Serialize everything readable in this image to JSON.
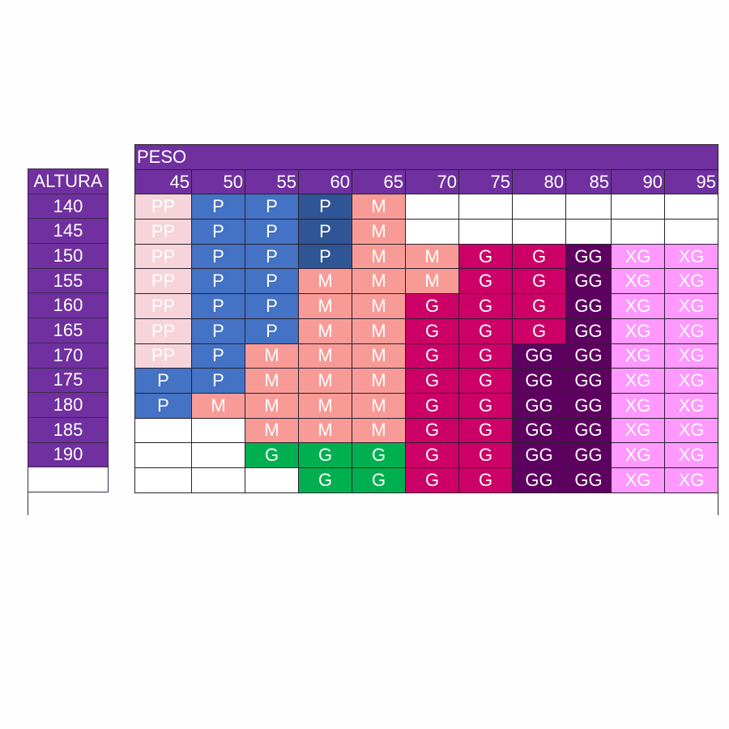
{
  "header": {
    "peso_label": "PESO",
    "altura_label": "ALTURA"
  },
  "weights": [
    "45",
    "50",
    "55",
    "60",
    "65",
    "70",
    "75",
    "80",
    "85",
    "90",
    "95"
  ],
  "heights": [
    "140",
    "145",
    "150",
    "155",
    "160",
    "165",
    "170",
    "175",
    "180",
    "185",
    "190",
    ""
  ],
  "colors": {
    "pp": "#f6d4d9",
    "p": "#4472c4",
    "pd": "#2f5597",
    "m": "#f89b97",
    "g": "#cc0066",
    "gn": "#00b050",
    "gg": "#5e0060",
    "xg": "#ff99ff",
    "": "#ffffff"
  },
  "rows": [
    [
      [
        "PP",
        "pp"
      ],
      [
        "P",
        "p"
      ],
      [
        "P",
        "p"
      ],
      [
        "P",
        "pd"
      ],
      [
        "M",
        "m"
      ],
      [
        "",
        ""
      ],
      [
        "",
        ""
      ],
      [
        "",
        ""
      ],
      [
        "",
        ""
      ],
      [
        "",
        ""
      ],
      [
        "",
        ""
      ]
    ],
    [
      [
        "PP",
        "pp"
      ],
      [
        "P",
        "p"
      ],
      [
        "P",
        "p"
      ],
      [
        "P",
        "pd"
      ],
      [
        "M",
        "m"
      ],
      [
        "",
        ""
      ],
      [
        "",
        ""
      ],
      [
        "",
        ""
      ],
      [
        "",
        ""
      ],
      [
        "",
        ""
      ],
      [
        "",
        ""
      ]
    ],
    [
      [
        "PP",
        "pp"
      ],
      [
        "P",
        "p"
      ],
      [
        "P",
        "p"
      ],
      [
        "P",
        "pd"
      ],
      [
        "M",
        "m"
      ],
      [
        "M",
        "m"
      ],
      [
        "G",
        "g"
      ],
      [
        "G",
        "g"
      ],
      [
        "GG",
        "gg"
      ],
      [
        "XG",
        "xg"
      ],
      [
        "XG",
        "xg"
      ]
    ],
    [
      [
        "PP",
        "pp"
      ],
      [
        "P",
        "p"
      ],
      [
        "P",
        "p"
      ],
      [
        "M",
        "m"
      ],
      [
        "M",
        "m"
      ],
      [
        "M",
        "m"
      ],
      [
        "G",
        "g"
      ],
      [
        "G",
        "g"
      ],
      [
        "GG",
        "gg"
      ],
      [
        "XG",
        "xg"
      ],
      [
        "XG",
        "xg"
      ]
    ],
    [
      [
        "PP",
        "pp"
      ],
      [
        "P",
        "p"
      ],
      [
        "P",
        "p"
      ],
      [
        "M",
        "m"
      ],
      [
        "M",
        "m"
      ],
      [
        "G",
        "g"
      ],
      [
        "G",
        "g"
      ],
      [
        "G",
        "g"
      ],
      [
        "GG",
        "gg"
      ],
      [
        "XG",
        "xg"
      ],
      [
        "XG",
        "xg"
      ]
    ],
    [
      [
        "PP",
        "pp"
      ],
      [
        "P",
        "p"
      ],
      [
        "P",
        "p"
      ],
      [
        "M",
        "m"
      ],
      [
        "M",
        "m"
      ],
      [
        "G",
        "g"
      ],
      [
        "G",
        "g"
      ],
      [
        "G",
        "g"
      ],
      [
        "GG",
        "gg"
      ],
      [
        "XG",
        "xg"
      ],
      [
        "XG",
        "xg"
      ]
    ],
    [
      [
        "PP",
        "pp"
      ],
      [
        "P",
        "p"
      ],
      [
        "M",
        "m"
      ],
      [
        "M",
        "m"
      ],
      [
        "M",
        "m"
      ],
      [
        "G",
        "g"
      ],
      [
        "G",
        "g"
      ],
      [
        "GG",
        "gg"
      ],
      [
        "GG",
        "gg"
      ],
      [
        "XG",
        "xg"
      ],
      [
        "XG",
        "xg"
      ]
    ],
    [
      [
        "P",
        "p"
      ],
      [
        "P",
        "p"
      ],
      [
        "M",
        "m"
      ],
      [
        "M",
        "m"
      ],
      [
        "M",
        "m"
      ],
      [
        "G",
        "g"
      ],
      [
        "G",
        "g"
      ],
      [
        "GG",
        "gg"
      ],
      [
        "GG",
        "gg"
      ],
      [
        "XG",
        "xg"
      ],
      [
        "XG",
        "xg"
      ]
    ],
    [
      [
        "P",
        "p"
      ],
      [
        "M",
        "m"
      ],
      [
        "M",
        "m"
      ],
      [
        "M",
        "m"
      ],
      [
        "M",
        "m"
      ],
      [
        "G",
        "g"
      ],
      [
        "G",
        "g"
      ],
      [
        "GG",
        "gg"
      ],
      [
        "GG",
        "gg"
      ],
      [
        "XG",
        "xg"
      ],
      [
        "XG",
        "xg"
      ]
    ],
    [
      [
        "",
        ""
      ],
      [
        "",
        ""
      ],
      [
        "M",
        "m"
      ],
      [
        "M",
        "m"
      ],
      [
        "M",
        "m"
      ],
      [
        "G",
        "g"
      ],
      [
        "G",
        "g"
      ],
      [
        "GG",
        "gg"
      ],
      [
        "GG",
        "gg"
      ],
      [
        "XG",
        "xg"
      ],
      [
        "XG",
        "xg"
      ]
    ],
    [
      [
        "",
        ""
      ],
      [
        "",
        ""
      ],
      [
        "G",
        "gn"
      ],
      [
        "G",
        "gn"
      ],
      [
        "G",
        "gn"
      ],
      [
        "G",
        "g"
      ],
      [
        "G",
        "g"
      ],
      [
        "GG",
        "gg"
      ],
      [
        "GG",
        "gg"
      ],
      [
        "XG",
        "xg"
      ],
      [
        "XG",
        "xg"
      ]
    ],
    [
      [
        "",
        ""
      ],
      [
        "",
        ""
      ],
      [
        "",
        ""
      ],
      [
        "G",
        "gn"
      ],
      [
        "G",
        "gn"
      ],
      [
        "G",
        "g"
      ],
      [
        "G",
        "g"
      ],
      [
        "GG",
        "gg"
      ],
      [
        "GG",
        "gg"
      ],
      [
        "XG",
        "xg"
      ],
      [
        "XG",
        "xg"
      ]
    ]
  ]
}
